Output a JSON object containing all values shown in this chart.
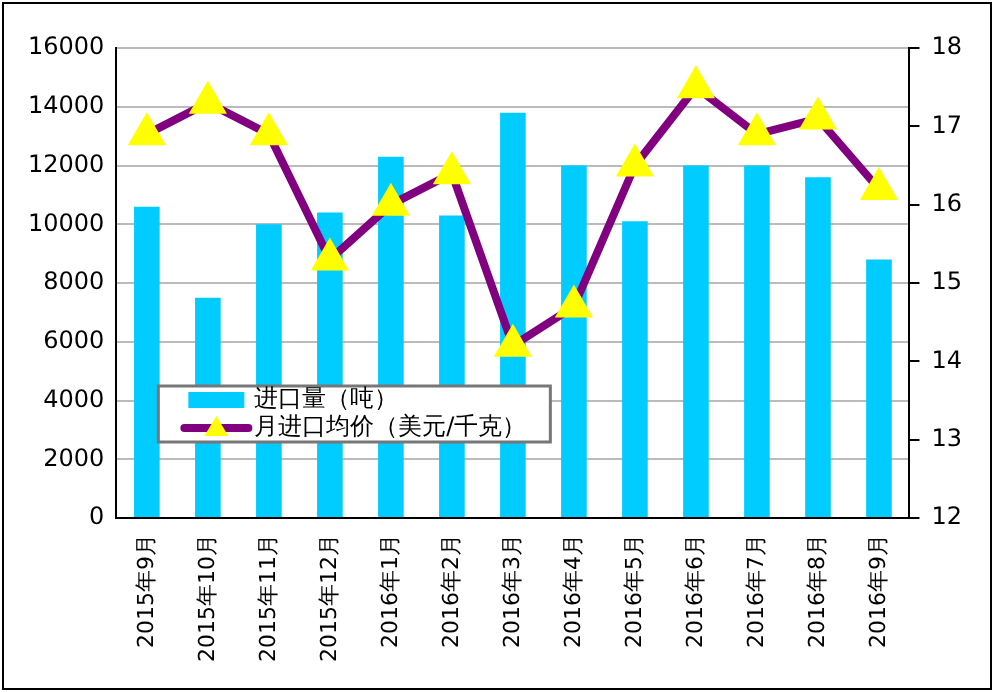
{
  "chart_data": {
    "type": "bar",
    "categories": [
      "2015年9月",
      "2015年10月",
      "2015年11月",
      "2015年12月",
      "2016年1月",
      "2016年2月",
      "2016年3月",
      "2016年4月",
      "2016年5月",
      "2016年6月",
      "2016年7月",
      "2016年8月",
      "2016年9月"
    ],
    "series": [
      {
        "name": "进口量（吨）",
        "color": "#00ccff",
        "values": [
          10600,
          7500,
          10000,
          10400,
          12300,
          10300,
          13800,
          12000,
          10100,
          12000,
          12000,
          11600,
          8800
        ]
      },
      {
        "name": "月进口均价（美元/千克）",
        "type": "line",
        "axis": "y2",
        "color": "#800080",
        "marker": "triangle",
        "values": [
          16.9,
          17.3,
          16.9,
          15.3,
          16.0,
          16.4,
          14.2,
          14.7,
          16.5,
          17.5,
          16.9,
          17.1,
          16.2
        ]
      }
    ],
    "ylim": [
      0,
      16000
    ],
    "yticks": [
      0,
      2000,
      4000,
      6000,
      8000,
      10000,
      12000,
      14000,
      16000
    ],
    "y2lim": [
      12,
      18
    ],
    "y2ticks": [
      12,
      13,
      14,
      15,
      16,
      17,
      18
    ],
    "grid": "y",
    "legend": "bottom left"
  }
}
